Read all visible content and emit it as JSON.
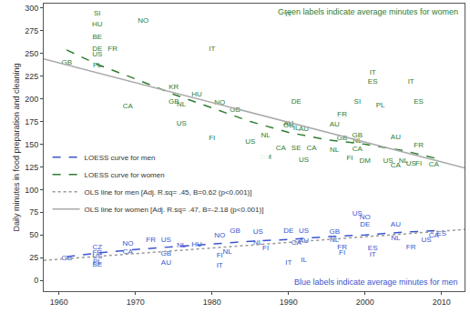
{
  "chart_data": {
    "type": "scatter",
    "y_label": "Daily minutes in food preparation and cleaning",
    "xlim": [
      1958,
      2013
    ],
    "xticks": [
      1960,
      1970,
      1980,
      1990,
      2000,
      2010
    ],
    "ylim": [
      -12,
      305
    ],
    "yticks": [
      0,
      25,
      50,
      75,
      100,
      125,
      150,
      175,
      200,
      225,
      250,
      275,
      300
    ],
    "grid": false,
    "legend": "bottom left",
    "annotations": [
      {
        "text": "Green labels indicate average minutes for women",
        "color": "#2e7d32"
      },
      {
        "text": "Blue labels indicate average minutes for men",
        "color": "#3a55d0"
      }
    ],
    "series": [
      {
        "type": "text",
        "color": "#2e7d32",
        "labels": [
          "SI",
          "HU",
          "NO",
          "BE",
          "DE",
          "FR",
          "US",
          "PL",
          "GB",
          "IT",
          "IT",
          "KR",
          "HU",
          "GB",
          "NL",
          "CA",
          "US",
          "NO",
          "GB",
          "FI",
          "DE",
          "AU",
          "IL",
          "AU",
          "GB",
          "NL",
          "CA",
          "SE",
          "CA",
          "US",
          "US",
          "DM",
          "NL",
          "GB",
          "FR",
          "AU",
          "SI",
          "PL",
          "IT",
          "ES",
          "IT",
          "ES",
          "AU",
          "FR",
          "FI",
          "GB",
          "NL",
          "CA",
          "FI",
          "DM",
          "US",
          "NL",
          "CA",
          "US",
          "CA"
        ],
        "x": [
          1965,
          1965,
          1971,
          1965,
          1965,
          1967,
          1965,
          1965,
          1961,
          1980,
          1990,
          1975,
          1978,
          1975,
          1976,
          1969,
          1976,
          1981,
          1983,
          1980,
          1991,
          1990,
          1991,
          1992,
          1990,
          1987,
          1989,
          1991,
          1993,
          1985,
          1992,
          1987,
          1996,
          1997,
          1997,
          1996,
          1999,
          2002,
          2001,
          2001,
          2006,
          2007,
          2004,
          2007,
          2007,
          1999,
          1999,
          1999,
          1998,
          2000,
          2003,
          2005,
          2004,
          2006,
          2009
        ],
        "values": [
          294,
          282,
          286,
          268,
          255,
          255,
          249,
          237,
          240,
          255,
          293,
          213,
          205,
          197,
          194,
          192,
          173,
          196,
          188,
          157,
          197,
          173,
          168,
          167,
          171,
          160,
          146,
          146,
          146,
          153,
          132,
          135,
          143,
          157,
          183,
          172,
          197,
          193,
          229,
          219,
          219,
          197,
          158,
          149,
          128,
          160,
          154,
          144,
          134,
          131,
          131,
          131,
          126,
          128,
          127
        ]
      },
      {
        "type": "text",
        "color": "#3a55d0",
        "labels": [
          "GB",
          "CZ",
          "FR",
          "US",
          "PL",
          "BE",
          "NO",
          "CA",
          "GB",
          "AU",
          "FR",
          "US",
          "NL",
          "HU",
          "NO",
          "GB",
          "NL",
          "FI",
          "IT",
          "US",
          "NL",
          "FI",
          "CA",
          "AU",
          "DE",
          "US",
          "IT",
          "IL",
          "GB",
          "NL",
          "FR",
          "FI",
          "US",
          "NO",
          "DE",
          "ES",
          "IT",
          "NL",
          "AU",
          "US",
          "FR",
          "CA",
          "ES"
        ],
        "x": [
          1961,
          1965,
          1965,
          1965,
          1965,
          1965,
          1969,
          1969,
          1974,
          1974,
          1972,
          1974,
          1976,
          1978,
          1981,
          1983,
          1982,
          1981,
          1981,
          1986,
          1986,
          1987,
          1991,
          1992,
          1990,
          1992,
          1990,
          1992,
          1996,
          1996,
          1997,
          1997,
          1999,
          2000,
          2000,
          2001,
          2001,
          2004,
          2004,
          2008,
          2006,
          2009,
          2010
        ],
        "values": [
          24,
          36,
          30,
          26,
          20,
          17,
          40,
          31,
          29,
          19,
          44,
          44,
          38,
          39,
          49,
          54,
          31,
          27,
          16,
          53,
          41,
          35,
          41,
          43,
          54,
          54,
          19,
          22,
          53,
          44,
          36,
          30,
          73,
          69,
          61,
          35,
          28,
          46,
          61,
          44,
          36,
          49,
          51
        ]
      },
      {
        "name": "LOESS curve for men",
        "type": "line",
        "line_style": "dashed",
        "color": "#3a55d0",
        "x": [
          1961,
          1965,
          1970,
          1975,
          1980,
          1985,
          1990,
          1995,
          2000,
          2005,
          2010
        ],
        "values": [
          26,
          30,
          34,
          37,
          40,
          43,
          45,
          48,
          50,
          53,
          55
        ]
      },
      {
        "name": "LOESS curve for women",
        "type": "line",
        "line_style": "dashed",
        "color": "#2e7d32",
        "x": [
          1961,
          1965,
          1970,
          1975,
          1980,
          1985,
          1990,
          1995,
          2000,
          2005,
          2010
        ],
        "values": [
          254,
          238,
          222,
          205,
          190,
          175,
          163,
          155,
          150,
          143,
          133
        ]
      },
      {
        "name": "OLS line for men [Adj. R.sq= .45, B=0.62 (p<0.001)]",
        "type": "line",
        "line_style": "dotted",
        "color": "#999999",
        "x": [
          1958,
          2013
        ],
        "values": [
          22,
          56
        ]
      },
      {
        "name": "OLS line for women [Adj. R.sq= .47, B=-2.18 (p<0.001)]",
        "type": "line",
        "line_style": "solid",
        "color": "#aaaaaa",
        "x": [
          1958,
          2013
        ],
        "values": [
          244,
          124
        ]
      }
    ]
  }
}
